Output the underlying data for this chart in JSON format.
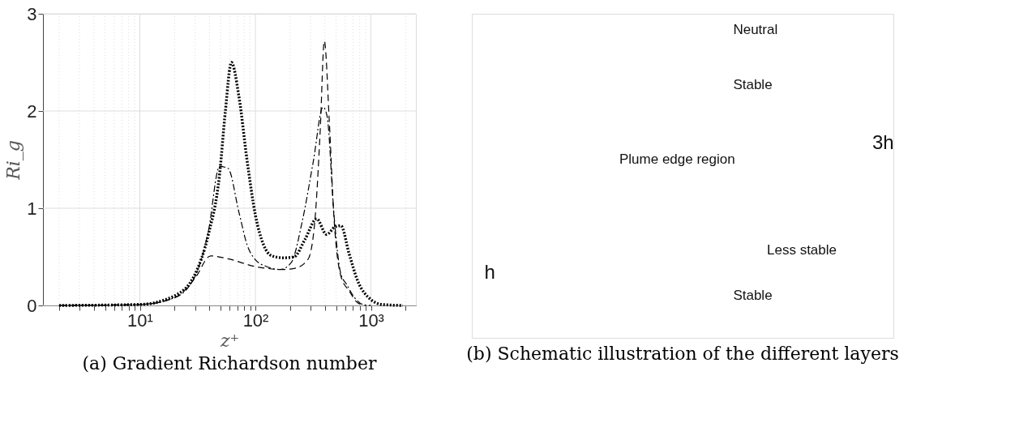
{
  "chart_data": [
    {
      "type": "line",
      "title": "(a) Gradient Richardson number",
      "xlabel": "z⁺",
      "ylabel": "Ri_g",
      "log": "x",
      "xlim": [
        1.45,
        2450
      ],
      "ylim": [
        0,
        3
      ],
      "xticks": [
        {
          "value": 2,
          "label": null
        },
        {
          "value": 3,
          "label": null
        },
        {
          "value": 4,
          "label": null
        },
        {
          "value": 5,
          "label": null
        },
        {
          "value": 6,
          "label": null
        },
        {
          "value": 7,
          "label": null
        },
        {
          "value": 8,
          "label": null
        },
        {
          "value": 9,
          "label": null
        },
        {
          "value": 10,
          "label": "10¹"
        },
        {
          "value": 20,
          "label": null
        },
        {
          "value": 30,
          "label": null
        },
        {
          "value": 40,
          "label": null
        },
        {
          "value": 50,
          "label": null
        },
        {
          "value": 60,
          "label": null
        },
        {
          "value": 70,
          "label": null
        },
        {
          "value": 80,
          "label": null
        },
        {
          "value": 90,
          "label": null
        },
        {
          "value": 100,
          "label": "10²"
        },
        {
          "value": 200,
          "label": null
        },
        {
          "value": 300,
          "label": null
        },
        {
          "value": 400,
          "label": null
        },
        {
          "value": 500,
          "label": null
        },
        {
          "value": 600,
          "label": null
        },
        {
          "value": 700,
          "label": null
        },
        {
          "value": 800,
          "label": null
        },
        {
          "value": 900,
          "label": null
        },
        {
          "value": 1000,
          "label": "10³"
        },
        {
          "value": 2000,
          "label": null
        }
      ],
      "yticks": [
        0,
        1,
        2,
        3
      ],
      "grid": true,
      "series": [
        {
          "color": "#000000",
          "line_style": "dotted",
          "x": [
            2,
            10,
            20,
            30,
            39,
            49,
            55,
            62,
            72,
            85,
            100,
            118,
            139,
            173,
            216,
            269,
            339,
            413,
            492,
            550,
            648,
            764,
            1000,
            1253,
            1893
          ],
          "values": [
            0,
            0.01,
            0.1,
            0.32,
            0.72,
            1.35,
            2.0,
            2.5,
            2.15,
            1.48,
            0.93,
            0.62,
            0.51,
            0.49,
            0.5,
            0.68,
            0.89,
            0.73,
            0.81,
            0.82,
            0.53,
            0.26,
            0.06,
            0.01,
            0
          ]
        },
        {
          "color": "#000000",
          "line_style": "dashdot",
          "x": [
            2,
            10,
            20,
            30,
            39,
            49,
            58,
            72,
            85,
            100,
            125,
            164,
            204,
            255,
            317,
            385,
            417,
            479,
            550,
            614,
            722,
            853,
            1000
          ],
          "values": [
            0,
            0.01,
            0.08,
            0.3,
            0.75,
            1.43,
            1.41,
            0.96,
            0.62,
            0.47,
            0.4,
            0.37,
            0.44,
            0.87,
            1.48,
            2.04,
            1.95,
            0.93,
            0.32,
            0.22,
            0.08,
            0.01,
            0
          ]
        },
        {
          "color": "#000000",
          "line_style": "dashed",
          "x": [
            2,
            10,
            20,
            30,
            41,
            58,
            100,
            173,
            216,
            284,
            326,
            364,
            395,
            436,
            479,
            550,
            648,
            764,
            901
          ],
          "values": [
            0,
            0.01,
            0.08,
            0.28,
            0.51,
            0.48,
            0.4,
            0.37,
            0.38,
            0.47,
            0.85,
            1.8,
            2.72,
            1.9,
            0.9,
            0.3,
            0.15,
            0.03,
            0
          ]
        }
      ]
    },
    {
      "type": "other",
      "title": "(b) Schematic illustration of the different layers",
      "annotations": [
        "Neutral",
        "Stable",
        "Plume edge region",
        "Less stable",
        "Stable",
        "3h",
        "h"
      ]
    }
  ]
}
